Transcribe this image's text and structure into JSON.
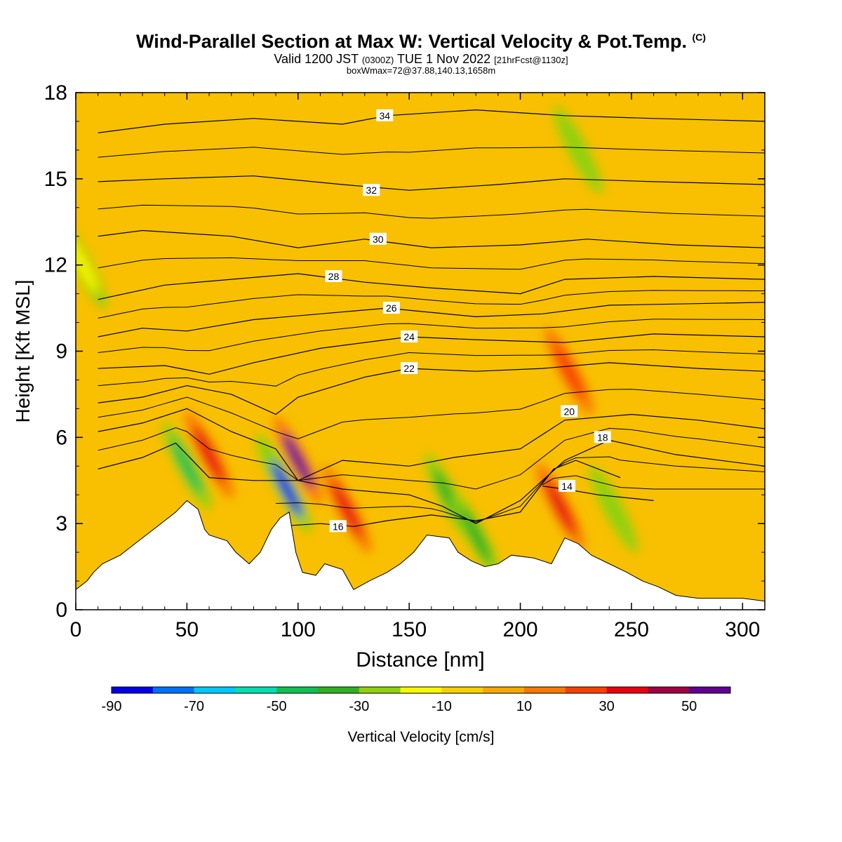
{
  "title": "Wind-Parallel Section at Max W: Vertical Velocity & Pot.Temp.",
  "title_mark": "(C)",
  "subtitle_a": "Valid 1200 JST",
  "subtitle_b": "(0300Z)",
  "subtitle_c": "TUE 1 Nov 2022",
  "subtitle_d": "[21hrFcst@1130z]",
  "subtitle2": "boxWmax=72@37.88,140.13,1658m",
  "chart_data": {
    "type": "heatmap",
    "xlabel": "Distance [nm]",
    "ylabel": "Height [Kft MSL]",
    "xlim": [
      0,
      310
    ],
    "ylim": [
      0,
      18
    ],
    "x_ticks": [
      0,
      50,
      100,
      150,
      200,
      250,
      300
    ],
    "y_ticks": [
      0,
      3,
      6,
      9,
      12,
      15,
      18
    ],
    "colorbar": {
      "label": "Vertical Velocity [cm/s]",
      "tick_labels": [
        -90,
        -70,
        -50,
        -30,
        -10,
        10,
        30,
        50
      ],
      "bounds": [
        -90,
        60
      ],
      "colors": [
        "#0000e6",
        "#0070ff",
        "#00c8ff",
        "#00e0b0",
        "#10c050",
        "#30b020",
        "#90d010",
        "#f8f800",
        "#f8d000",
        "#f8a800",
        "#f87800",
        "#f84000",
        "#e80010",
        "#a00040",
        "#600090"
      ]
    },
    "background_color": "#f8c000",
    "terrain": [
      [
        0,
        0.7
      ],
      [
        5,
        1.0
      ],
      [
        8,
        1.3
      ],
      [
        12,
        1.6
      ],
      [
        20,
        1.9
      ],
      [
        25,
        2.2
      ],
      [
        30,
        2.5
      ],
      [
        35,
        2.8
      ],
      [
        40,
        3.1
      ],
      [
        45,
        3.4
      ],
      [
        50,
        3.8
      ],
      [
        55,
        3.5
      ],
      [
        58,
        2.8
      ],
      [
        60,
        2.6
      ],
      [
        68,
        2.4
      ],
      [
        72,
        2.0
      ],
      [
        78,
        1.6
      ],
      [
        83,
        2.0
      ],
      [
        88,
        2.8
      ],
      [
        92,
        3.2
      ],
      [
        96,
        3.4
      ],
      [
        99,
        2.0
      ],
      [
        102,
        1.3
      ],
      [
        108,
        1.2
      ],
      [
        112,
        1.6
      ],
      [
        120,
        1.4
      ],
      [
        125,
        0.7
      ],
      [
        132,
        1.0
      ],
      [
        140,
        1.3
      ],
      [
        146,
        1.6
      ],
      [
        152,
        2.0
      ],
      [
        158,
        2.6
      ],
      [
        168,
        2.5
      ],
      [
        172,
        2.0
      ],
      [
        178,
        1.7
      ],
      [
        184,
        1.5
      ],
      [
        190,
        1.6
      ],
      [
        196,
        1.9
      ],
      [
        206,
        1.8
      ],
      [
        214,
        1.6
      ],
      [
        220,
        2.5
      ],
      [
        226,
        2.3
      ],
      [
        232,
        1.9
      ],
      [
        240,
        1.6
      ],
      [
        248,
        1.3
      ],
      [
        255,
        1.0
      ],
      [
        262,
        0.8
      ],
      [
        270,
        0.5
      ],
      [
        280,
        0.4
      ],
      [
        300,
        0.4
      ],
      [
        310,
        0.3
      ]
    ],
    "velocity_features": [
      {
        "x": 50,
        "y": 5.0,
        "w": -45
      },
      {
        "x": 60,
        "y": 5.4,
        "w": 35
      },
      {
        "x": 92,
        "y": 4.6,
        "w": -50
      },
      {
        "x": 95,
        "y": 4.2,
        "w": -85
      },
      {
        "x": 100,
        "y": 5.2,
        "w": 55
      },
      {
        "x": 122,
        "y": 3.5,
        "w": 35
      },
      {
        "x": 168,
        "y": 3.9,
        "w": -40
      },
      {
        "x": 180,
        "y": 2.6,
        "w": -35
      },
      {
        "x": 218,
        "y": 3.6,
        "w": 35
      },
      {
        "x": 222,
        "y": 8.3,
        "w": 25
      },
      {
        "x": 226,
        "y": 16.0,
        "w": -30
      },
      {
        "x": 242,
        "y": 3.5,
        "w": -30
      },
      {
        "x": 3,
        "y": 12.0,
        "w": -15
      }
    ],
    "theta_contours": [
      {
        "value": 14,
        "label": "14",
        "points": [
          [
            210,
            4.3
          ],
          [
            220,
            4.2
          ],
          [
            235,
            4.0
          ],
          [
            260,
            3.8
          ]
        ],
        "label_at": [
          221,
          4.3
        ]
      },
      {
        "value": 16,
        "label": "16",
        "points": [
          [
            90,
            2.9
          ],
          [
            110,
            3.0
          ],
          [
            125,
            2.9
          ],
          [
            140,
            3.1
          ],
          [
            160,
            3.3
          ],
          [
            180,
            3.1
          ],
          [
            200,
            3.4
          ],
          [
            215,
            4.9
          ],
          [
            225,
            5.2
          ],
          [
            245,
            4.6
          ]
        ],
        "label_at": [
          118,
          2.9
        ]
      },
      {
        "value": 18,
        "label": "18",
        "points": [
          [
            10,
            4.9
          ],
          [
            30,
            5.3
          ],
          [
            45,
            5.8
          ],
          [
            60,
            4.6
          ],
          [
            80,
            4.5
          ],
          [
            100,
            4.5
          ],
          [
            120,
            4.2
          ],
          [
            150,
            4.0
          ],
          [
            165,
            3.6
          ],
          [
            180,
            3.0
          ],
          [
            200,
            3.8
          ],
          [
            220,
            5.2
          ],
          [
            240,
            5.9
          ],
          [
            270,
            5.4
          ],
          [
            310,
            5.0
          ]
        ],
        "label_at": [
          237,
          6.0
        ]
      },
      {
        "value": 20,
        "label": "20",
        "points": [
          [
            10,
            6.2
          ],
          [
            30,
            6.5
          ],
          [
            50,
            7.0
          ],
          [
            70,
            6.2
          ],
          [
            90,
            5.6
          ],
          [
            100,
            4.5
          ],
          [
            120,
            5.2
          ],
          [
            150,
            5.0
          ],
          [
            170,
            5.3
          ],
          [
            200,
            5.6
          ],
          [
            220,
            6.6
          ],
          [
            250,
            6.8
          ],
          [
            280,
            6.6
          ],
          [
            310,
            6.3
          ]
        ],
        "label_at": [
          222,
          6.9
        ]
      },
      {
        "value": 22,
        "label": "22",
        "points": [
          [
            10,
            7.2
          ],
          [
            30,
            7.4
          ],
          [
            50,
            7.8
          ],
          [
            70,
            7.5
          ],
          [
            90,
            6.8
          ],
          [
            100,
            7.4
          ],
          [
            130,
            8.1
          ],
          [
            150,
            8.4
          ],
          [
            180,
            8.3
          ],
          [
            210,
            8.4
          ],
          [
            240,
            8.6
          ],
          [
            280,
            8.4
          ],
          [
            310,
            8.3
          ]
        ],
        "label_at": [
          150,
          8.4
        ]
      },
      {
        "value": 24,
        "label": "24",
        "points": [
          [
            10,
            8.4
          ],
          [
            40,
            8.5
          ],
          [
            60,
            8.2
          ],
          [
            80,
            8.6
          ],
          [
            110,
            9.1
          ],
          [
            150,
            9.5
          ],
          [
            180,
            9.4
          ],
          [
            220,
            9.3
          ],
          [
            260,
            9.6
          ],
          [
            310,
            9.5
          ]
        ],
        "label_at": [
          150,
          9.5
        ]
      },
      {
        "value": 26,
        "label": "26",
        "points": [
          [
            10,
            9.5
          ],
          [
            30,
            9.8
          ],
          [
            50,
            9.7
          ],
          [
            80,
            10.1
          ],
          [
            110,
            10.3
          ],
          [
            140,
            10.5
          ],
          [
            180,
            10.2
          ],
          [
            210,
            10.3
          ],
          [
            240,
            10.6
          ],
          [
            310,
            10.7
          ]
        ],
        "label_at": [
          142,
          10.5
        ]
      },
      {
        "value": 28,
        "label": "28",
        "points": [
          [
            10,
            10.8
          ],
          [
            40,
            11.3
          ],
          [
            70,
            11.5
          ],
          [
            100,
            11.7
          ],
          [
            130,
            11.4
          ],
          [
            160,
            11.2
          ],
          [
            200,
            11.0
          ],
          [
            220,
            11.5
          ],
          [
            260,
            11.6
          ],
          [
            310,
            11.5
          ]
        ],
        "label_at": [
          116,
          11.6
        ]
      },
      {
        "value": 30,
        "label": "30",
        "points": [
          [
            10,
            13.0
          ],
          [
            30,
            13.2
          ],
          [
            70,
            13.0
          ],
          [
            100,
            12.6
          ],
          [
            130,
            12.9
          ],
          [
            160,
            12.6
          ],
          [
            200,
            12.7
          ],
          [
            230,
            12.9
          ],
          [
            270,
            12.7
          ],
          [
            310,
            12.6
          ]
        ],
        "label_at": [
          136,
          12.9
        ]
      },
      {
        "value": 32,
        "label": "32",
        "points": [
          [
            10,
            14.9
          ],
          [
            40,
            15.0
          ],
          [
            80,
            15.1
          ],
          [
            120,
            14.8
          ],
          [
            150,
            14.6
          ],
          [
            190,
            14.8
          ],
          [
            220,
            15.0
          ],
          [
            260,
            14.9
          ],
          [
            310,
            14.8
          ]
        ],
        "label_at": [
          133,
          14.6
        ]
      },
      {
        "value": 34,
        "label": "34",
        "points": [
          [
            10,
            16.6
          ],
          [
            40,
            16.9
          ],
          [
            80,
            17.1
          ],
          [
            120,
            16.9
          ],
          [
            140,
            17.2
          ],
          [
            180,
            17.4
          ],
          [
            220,
            17.2
          ],
          [
            260,
            17.1
          ],
          [
            310,
            17.0
          ]
        ],
        "label_at": [
          139,
          17.2
        ]
      }
    ]
  }
}
